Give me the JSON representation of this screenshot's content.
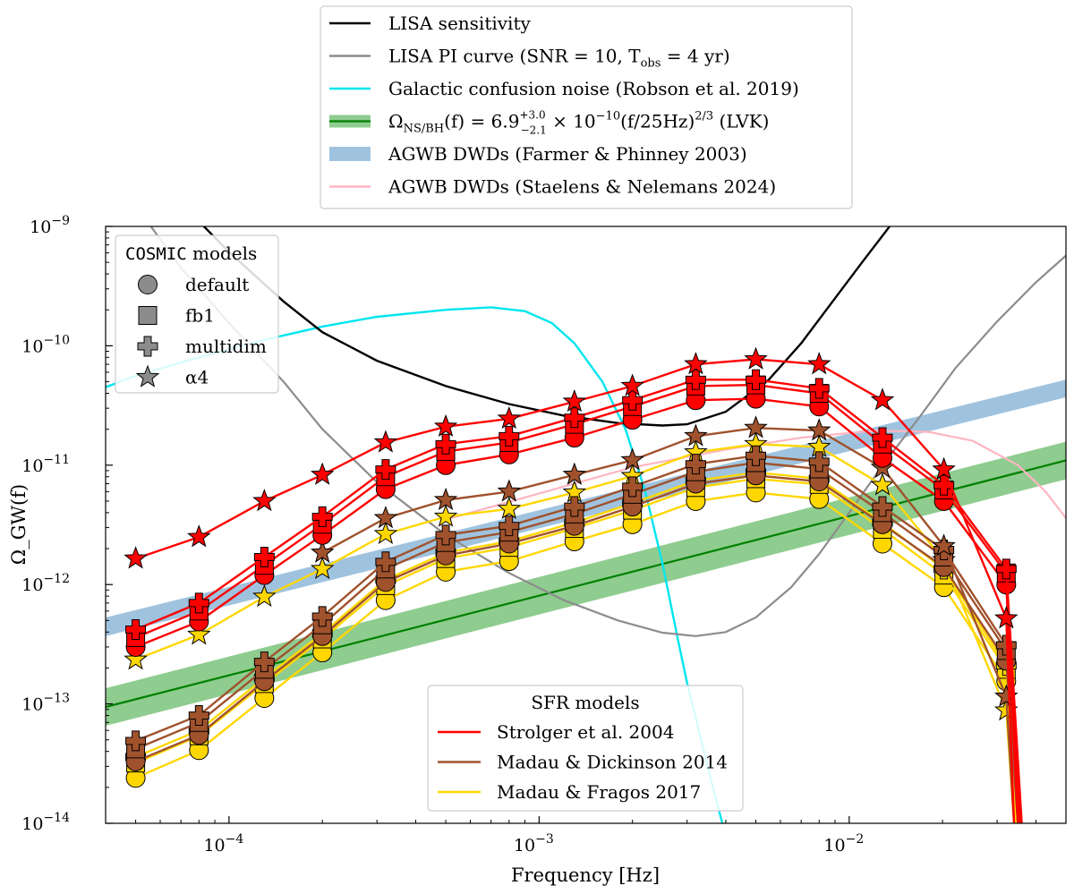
{
  "chart_data": {
    "type": "line",
    "xlabel": "Frequency [Hz]",
    "ylabel": "Ω_GW(f)",
    "xscale": "log",
    "yscale": "log",
    "xlim": [
      4e-05,
      0.05
    ],
    "ylim": [
      1e-14,
      1e-09
    ],
    "x_ticks": [
      {
        "value": 0.0001,
        "base": "10",
        "exp": "−4"
      },
      {
        "value": 0.001,
        "base": "10",
        "exp": "−3"
      },
      {
        "value": 0.01,
        "base": "10",
        "exp": "−2"
      }
    ],
    "y_ticks": [
      {
        "value": 1e-14,
        "base": "10",
        "exp": "−14"
      },
      {
        "value": 1e-13,
        "base": "10",
        "exp": "−13"
      },
      {
        "value": 1e-12,
        "base": "10",
        "exp": "−12"
      },
      {
        "value": 1e-11,
        "base": "10",
        "exp": "−11"
      },
      {
        "value": 1e-10,
        "base": "10",
        "exp": "−10"
      },
      {
        "value": 1e-09,
        "base": "10",
        "exp": "−9"
      }
    ],
    "frequencies": [
      5e-05,
      8e-05,
      0.00013,
      0.0002,
      0.00032,
      0.0005,
      0.0008,
      0.0013,
      0.002,
      0.0032,
      0.005,
      0.008,
      0.0128,
      0.0202,
      0.0321
    ],
    "sfr_colors": {
      "strolger": "#ff0000",
      "madau_dickinson": "#a0522d",
      "madau_fragos": "#ffd700"
    },
    "sfr_edge_colors": {
      "strolger": "#b00000",
      "madau_dickinson": "#6b3318",
      "madau_fragos": "#a08a00"
    },
    "series": [
      {
        "name": "Strolger default",
        "sfr": "strolger",
        "model": "default",
        "values": [
          3e-13,
          4.9e-13,
          1.2e-12,
          2.6e-12,
          6.3e-12,
          1e-11,
          1.23e-11,
          1.7e-11,
          2.4e-11,
          3.5e-11,
          3.6e-11,
          3.1e-11,
          1.15e-11,
          5e-12,
          1e-12
        ],
        "tail": [
          0.035,
          1e-14
        ]
      },
      {
        "name": "Strolger fb1",
        "sfr": "strolger",
        "model": "fb1",
        "values": [
          3.6e-13,
          6e-13,
          1.45e-12,
          3.2e-12,
          8e-12,
          1.3e-11,
          1.55e-11,
          2.2e-11,
          3.1e-11,
          4.6e-11,
          4.7e-11,
          4e-11,
          1.5e-11,
          6.2e-12,
          1.25e-12
        ],
        "tail": [
          0.0355,
          1e-14
        ]
      },
      {
        "name": "Strolger multidim",
        "sfr": "strolger",
        "model": "multidim",
        "values": [
          4.2e-13,
          7e-13,
          1.7e-12,
          3.7e-12,
          9.2e-12,
          1.5e-11,
          1.75e-11,
          2.5e-11,
          3.5e-11,
          5.2e-11,
          5.2e-11,
          4.4e-11,
          1.7e-11,
          6.8e-12,
          1.35e-12
        ],
        "tail": [
          0.036,
          1e-14
        ]
      },
      {
        "name": "Strolger α4",
        "sfr": "strolger",
        "model": "alpha4",
        "values": [
          1.65e-12,
          2.5e-12,
          5e-12,
          8.3e-12,
          1.55e-11,
          2.1e-11,
          2.45e-11,
          3.4e-11,
          4.6e-11,
          7e-11,
          7.7e-11,
          7e-11,
          3.5e-11,
          9.2e-12,
          5.2e-13
        ],
        "tail": [
          0.034,
          1e-14
        ]
      },
      {
        "name": "Madau & Dickinson default",
        "sfr": "madau_dickinson",
        "model": "default",
        "values": [
          3.3e-14,
          5.5e-14,
          1.55e-13,
          3.7e-13,
          1.05e-12,
          1.75e-12,
          2.2e-12,
          3.1e-12,
          4.5e-12,
          7e-12,
          8.2e-12,
          7.3e-12,
          3.2e-12,
          1.4e-12,
          2.3e-13
        ],
        "tail": [
          0.035,
          1e-14
        ]
      },
      {
        "name": "Madau & Dickinson fb1",
        "sfr": "madau_dickinson",
        "model": "fb1",
        "values": [
          4.2e-14,
          7e-14,
          1.95e-13,
          4.6e-13,
          1.35e-12,
          2.25e-12,
          2.75e-12,
          3.9e-12,
          5.7e-12,
          8.8e-12,
          1.05e-11,
          9.3e-12,
          4e-12,
          1.7e-12,
          2.8e-13
        ],
        "tail": [
          0.035,
          1e-14
        ]
      },
      {
        "name": "Madau & Dickinson multidim",
        "sfr": "madau_dickinson",
        "model": "multidim",
        "values": [
          4.9e-14,
          8e-14,
          2.25e-13,
          5.4e-13,
          1.55e-12,
          2.6e-12,
          3.1e-12,
          4.5e-12,
          6.6e-12,
          1.02e-11,
          1.2e-11,
          1.07e-11,
          4.5e-12,
          1.95e-12,
          3.1e-13
        ],
        "tail": [
          0.0355,
          1e-14
        ]
      },
      {
        "name": "Madau & Dickinson α4",
        "sfr": "madau_dickinson",
        "model": "alpha4",
        "values": [
          null,
          null,
          null,
          1.85e-12,
          3.6e-12,
          5.1e-12,
          6e-12,
          8.3e-12,
          1.1e-11,
          1.75e-11,
          2.05e-11,
          1.95e-11,
          9.5e-12,
          2.1e-12,
          1.15e-13
        ],
        "tail": [
          0.034,
          1e-14
        ]
      },
      {
        "name": "Madau & Fragos default",
        "sfr": "madau_fragos",
        "model": "default",
        "values": [
          2.4e-14,
          4.1e-14,
          1.12e-13,
          2.7e-13,
          7.4e-13,
          1.28e-12,
          1.57e-12,
          2.3e-12,
          3.2e-12,
          5e-12,
          5.9e-12,
          5.2e-12,
          2.2e-12,
          9.5e-13,
          1.55e-13
        ],
        "tail": [
          0.034,
          1e-14
        ]
      },
      {
        "name": "Madau & Fragos fb1",
        "sfr": "madau_fragos",
        "model": "fb1",
        "values": [
          3.2e-14,
          5.4e-14,
          1.48e-13,
          3.5e-13,
          9.8e-13,
          1.65e-12,
          2.05e-12,
          2.95e-12,
          4.2e-12,
          6.5e-12,
          7.7e-12,
          6.9e-12,
          2.9e-12,
          1.2e-12,
          1.95e-13
        ],
        "tail": [
          0.0345,
          1e-14
        ]
      },
      {
        "name": "Madau & Fragos multidim",
        "sfr": "madau_fragos",
        "model": "multidim",
        "values": [
          3.6e-14,
          6e-14,
          1.65e-13,
          3.9e-13,
          1.1e-12,
          1.85e-12,
          2.3e-12,
          3.3e-12,
          4.8e-12,
          7.4e-12,
          8.7e-12,
          7.7e-12,
          3.3e-12,
          1.35e-12,
          2.1e-13
        ],
        "tail": [
          0.035,
          1e-14
        ]
      },
      {
        "name": "Madau & Fragos α4",
        "sfr": "madau_fragos",
        "model": "alpha4",
        "values": [
          2.35e-13,
          3.8e-13,
          7.9e-13,
          1.35e-12,
          2.65e-12,
          3.7e-12,
          4.3e-12,
          5.9e-12,
          8.1e-12,
          1.28e-11,
          1.5e-11,
          1.42e-11,
          6.8e-12,
          1.6e-12,
          8.8e-14
        ],
        "tail": [
          0.034,
          1e-14
        ]
      }
    ],
    "curves": {
      "lisa_sensitivity": {
        "color": "#000000",
        "points": [
          [
            8.3e-05,
            1e-09
          ],
          [
            0.0001,
            6.1e-10
          ],
          [
            0.00015,
            2.35e-10
          ],
          [
            0.0002,
            1.3e-10
          ],
          [
            0.0003,
            7.5e-11
          ],
          [
            0.0005,
            4.6e-11
          ],
          [
            0.0008,
            3.25e-11
          ],
          [
            0.0012,
            2.6e-11
          ],
          [
            0.0018,
            2.25e-11
          ],
          [
            0.0025,
            2.15e-11
          ],
          [
            0.003,
            2.2e-11
          ],
          [
            0.004,
            2.8e-11
          ],
          [
            0.0055,
            5.2e-11
          ],
          [
            0.007,
            1.05e-10
          ],
          [
            0.009,
            2.5e-10
          ],
          [
            0.011,
            5e-10
          ],
          [
            0.0135,
            1e-09
          ]
        ]
      },
      "lisa_pi": {
        "color": "#8c8c8c",
        "points": [
          [
            5.6e-05,
            1e-09
          ],
          [
            7e-05,
            4.5e-10
          ],
          [
            0.0001,
            1.55e-10
          ],
          [
            0.00015,
            5e-11
          ],
          [
            0.0002,
            2e-11
          ],
          [
            0.0003,
            7.2e-12
          ],
          [
            0.0005,
            2.6e-12
          ],
          [
            0.0008,
            1.25e-12
          ],
          [
            0.0012,
            7.4e-13
          ],
          [
            0.0018,
            5e-13
          ],
          [
            0.0025,
            3.95e-13
          ],
          [
            0.0032,
            3.7e-13
          ],
          [
            0.004,
            4e-13
          ],
          [
            0.005,
            5.3e-13
          ],
          [
            0.0065,
            9.5e-13
          ],
          [
            0.008,
            1.8e-12
          ],
          [
            0.01,
            4e-12
          ],
          [
            0.013,
            1.05e-11
          ],
          [
            0.017,
            2.6e-11
          ],
          [
            0.022,
            6.5e-11
          ],
          [
            0.03,
            1.6e-10
          ],
          [
            0.04,
            3.4e-10
          ],
          [
            0.05,
            5.7e-10
          ]
        ]
      },
      "galactic_confusion": {
        "color": "#00e5ee",
        "points": [
          [
            4e-05,
            4.5e-11
          ],
          [
            5e-05,
            5.6e-11
          ],
          [
            8e-05,
            8e-11
          ],
          [
            0.00013,
            1.12e-10
          ],
          [
            0.0002,
            1.45e-10
          ],
          [
            0.0003,
            1.75e-10
          ],
          [
            0.0005,
            2e-10
          ],
          [
            0.0007,
            2.1e-10
          ],
          [
            0.0009,
            1.95e-10
          ],
          [
            0.0011,
            1.55e-10
          ],
          [
            0.0013,
            1.05e-10
          ],
          [
            0.0016,
            5e-11
          ],
          [
            0.0019,
            2e-11
          ],
          [
            0.0022,
            6e-12
          ],
          [
            0.0025,
            1.5e-12
          ],
          [
            0.0028,
            3.5e-13
          ],
          [
            0.003,
            1.5e-13
          ],
          [
            0.0033,
            5.5e-14
          ],
          [
            0.0036,
            2.2e-14
          ],
          [
            0.0039,
            1e-14
          ]
        ]
      },
      "lvk_band": {
        "color": "#008000",
        "fill": "#8fcc8f",
        "reference_value": 6.9e-10,
        "err_plus": 3e-10,
        "err_minus": 2.1e-10,
        "reference_frequency": 25,
        "slope": 0.6667
      },
      "agwb_farmer": {
        "color": "#9fc3df",
        "points_upper": [
          [
            4e-05,
            5.3e-13
          ],
          [
            0.05,
            5.2e-11
          ]
        ],
        "points_lower": [
          [
            4e-05,
            3.7e-13
          ],
          [
            0.05,
            3.7e-11
          ]
        ]
      },
      "agwb_staelens": {
        "color": "#ffb6c1",
        "points": [
          [
            0.0005,
            3.5e-12
          ],
          [
            0.001,
            5.8e-12
          ],
          [
            0.002,
            9.6e-12
          ],
          [
            0.004,
            1.35e-11
          ],
          [
            0.007,
            1.7e-11
          ],
          [
            0.012,
            1.95e-11
          ],
          [
            0.018,
            1.9e-11
          ],
          [
            0.025,
            1.6e-11
          ],
          [
            0.035,
            1e-11
          ],
          [
            0.043,
            6e-12
          ],
          [
            0.05,
            3.6e-12
          ]
        ]
      }
    },
    "top_legend": [
      {
        "key": "lisa_sensitivity",
        "label": "LISA sensitivity"
      },
      {
        "key": "lisa_pi",
        "label": "LISA PI curve (SNR = 10,  T",
        "sub": "obs",
        "tail": " = 4 yr)"
      },
      {
        "key": "galactic_confusion",
        "label": "Galactic confusion noise (Robson et al. 2019)"
      },
      {
        "key": "lvk_band",
        "label": "Ω",
        "sub": "NS/BH",
        "mid": "(f) = 6.9",
        "sup": "+3.0",
        "sub2": "−2.1",
        "tail": " × 10",
        "sup2": "−10",
        "tail2": "(f/25Hz)",
        "sup3": "2/3",
        "tail3": " (LVK)"
      },
      {
        "key": "agwb_farmer",
        "label": "AGWB DWDs (Farmer & Phinney 2003)"
      },
      {
        "key": "agwb_staelens",
        "label": "AGWB DWDs (Staelens & Nelemans 2024)"
      }
    ],
    "cosmic_legend": {
      "title_mono": "COSMIC",
      "title_rest": " models",
      "items": [
        {
          "marker": "circle",
          "label": "default"
        },
        {
          "marker": "square",
          "label": "fb1"
        },
        {
          "marker": "plus",
          "label": "multidim"
        },
        {
          "marker": "star",
          "label": "α4"
        }
      ]
    },
    "sfr_legend": {
      "title": "SFR models",
      "items": [
        {
          "sfr": "strolger",
          "label": "Strolger et al. 2004"
        },
        {
          "sfr": "madau_dickinson",
          "label": "Madau & Dickinson 2014"
        },
        {
          "sfr": "madau_fragos",
          "label": "Madau & Fragos 2017"
        }
      ]
    }
  }
}
